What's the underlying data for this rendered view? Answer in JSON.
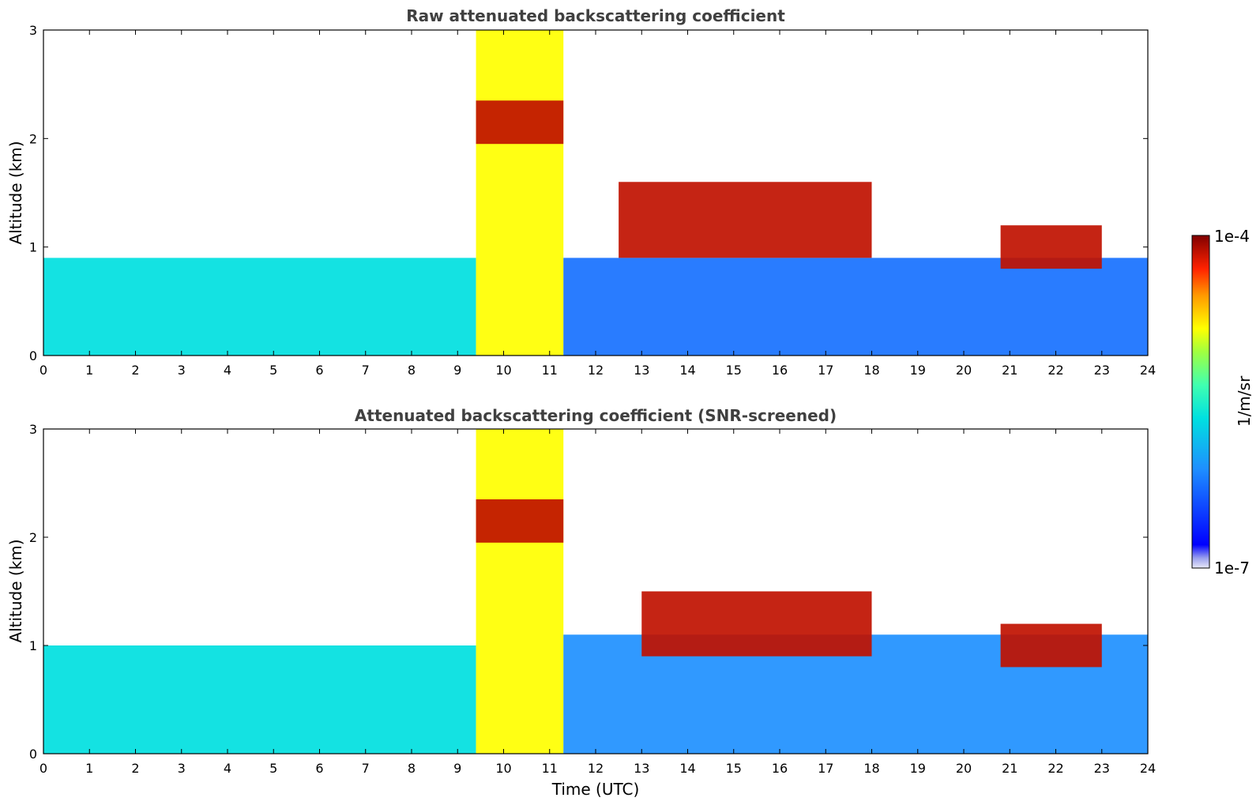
{
  "chart_data": [
    {
      "type": "heatmap",
      "title": "Raw attenuated backscattering coefficient",
      "xlabel": "",
      "ylabel": "Altitude (km)",
      "xlim": [
        0,
        24
      ],
      "ylim": [
        0,
        3
      ],
      "x_ticks": [
        "0",
        "1",
        "2",
        "3",
        "4",
        "5",
        "6",
        "7",
        "8",
        "9",
        "10",
        "11",
        "12",
        "13",
        "14",
        "15",
        "16",
        "17",
        "18",
        "19",
        "20",
        "21",
        "22",
        "23",
        "24"
      ],
      "y_ticks": [
        "0",
        "1",
        "2",
        "3"
      ],
      "color_scale": "log",
      "grid": false,
      "colorbar": {
        "label": "1/m/sr",
        "min_label": "1e-7",
        "max_label": "1e-4"
      },
      "features": [
        {
          "name": "aerosol boundary layer",
          "x_start": 0,
          "x_end": 9.4,
          "top_km": 0.9,
          "level": 0.45
        },
        {
          "name": "precipitation / thick cloud",
          "x_start": 9.4,
          "x_end": 11.3,
          "base_km": 0,
          "top_km": 3.0,
          "level": 0.72
        },
        {
          "name": "cloud layer",
          "x_start": 9.4,
          "x_end": 11.3,
          "base_km": 1.95,
          "top_km": 2.35,
          "level": 0.95
        },
        {
          "name": "boundary layer",
          "x_start": 11.3,
          "x_end": 24,
          "top_km": 0.9,
          "level": 0.25
        },
        {
          "name": "scattered clouds",
          "x_start": 12.5,
          "x_end": 18,
          "base_km": 0.9,
          "top_km": 1.6,
          "level": 0.95
        },
        {
          "name": "cloud layer",
          "x_start": 20.8,
          "x_end": 23,
          "base_km": 0.8,
          "top_km": 1.2,
          "level": 0.95
        }
      ]
    },
    {
      "type": "heatmap",
      "title": "Attenuated backscattering coefficient (SNR-screened)",
      "xlabel": "Time (UTC)",
      "ylabel": "Altitude (km)",
      "xlim": [
        0,
        24
      ],
      "ylim": [
        0,
        3
      ],
      "x_ticks": [
        "0",
        "1",
        "2",
        "3",
        "4",
        "5",
        "6",
        "7",
        "8",
        "9",
        "10",
        "11",
        "12",
        "13",
        "14",
        "15",
        "16",
        "17",
        "18",
        "19",
        "20",
        "21",
        "22",
        "23",
        "24"
      ],
      "y_ticks": [
        "0",
        "1",
        "2",
        "3"
      ],
      "color_scale": "log",
      "grid": false,
      "features": [
        {
          "name": "aerosol boundary layer",
          "x_start": 0,
          "x_end": 9.4,
          "top_km": 1.0,
          "level": 0.45
        },
        {
          "name": "precipitation / thick cloud",
          "x_start": 9.4,
          "x_end": 11.3,
          "base_km": 0,
          "top_km": 3.0,
          "level": 0.72
        },
        {
          "name": "cloud layer",
          "x_start": 9.4,
          "x_end": 11.3,
          "base_km": 1.95,
          "top_km": 2.35,
          "level": 0.95
        },
        {
          "name": "boundary layer",
          "x_start": 11.3,
          "x_end": 24,
          "top_km": 1.1,
          "level": 0.3
        },
        {
          "name": "scattered clouds",
          "x_start": 13,
          "x_end": 18,
          "base_km": 0.9,
          "top_km": 1.5,
          "level": 0.95
        },
        {
          "name": "cloud layer",
          "x_start": 20.8,
          "x_end": 23,
          "base_km": 0.8,
          "top_km": 1.2,
          "level": 0.95
        }
      ]
    }
  ]
}
